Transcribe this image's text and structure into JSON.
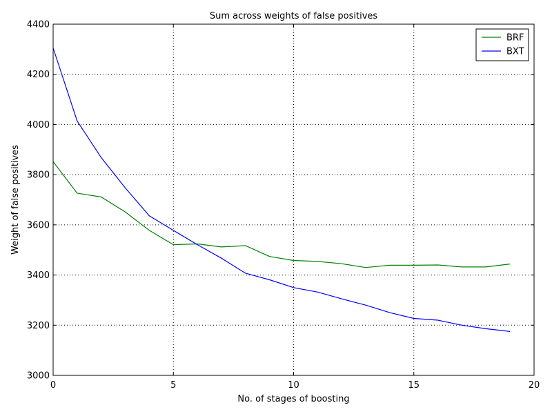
{
  "chart_data": {
    "type": "line",
    "title": "Sum across weights of false positives",
    "xlabel": "No. of stages of boosting",
    "ylabel": "Weight of false positives",
    "xlim": [
      0,
      20
    ],
    "ylim": [
      3000,
      4400
    ],
    "xticks": [
      0,
      5,
      10,
      15,
      20
    ],
    "yticks": [
      3000,
      3200,
      3400,
      3600,
      3800,
      4000,
      4200,
      4400
    ],
    "grid": true,
    "legend_position": "top-right",
    "x": [
      0,
      1,
      2,
      3,
      4,
      5,
      6,
      7,
      8,
      9,
      10,
      11,
      12,
      13,
      14,
      15,
      16,
      17,
      18,
      19
    ],
    "series": [
      {
        "name": "BRF",
        "color": "#008000",
        "values": [
          3852,
          3726,
          3711,
          3651,
          3578,
          3521,
          3524,
          3512,
          3517,
          3474,
          3458,
          3454,
          3445,
          3430,
          3439,
          3439,
          3440,
          3432,
          3432,
          3444
        ]
      },
      {
        "name": "BXT",
        "color": "#0000ff",
        "values": [
          4305,
          4014,
          3868,
          3747,
          3636,
          3578,
          3521,
          3467,
          3407,
          3381,
          3350,
          3332,
          3305,
          3280,
          3250,
          3227,
          3220,
          3200,
          3186,
          3175
        ]
      }
    ]
  }
}
